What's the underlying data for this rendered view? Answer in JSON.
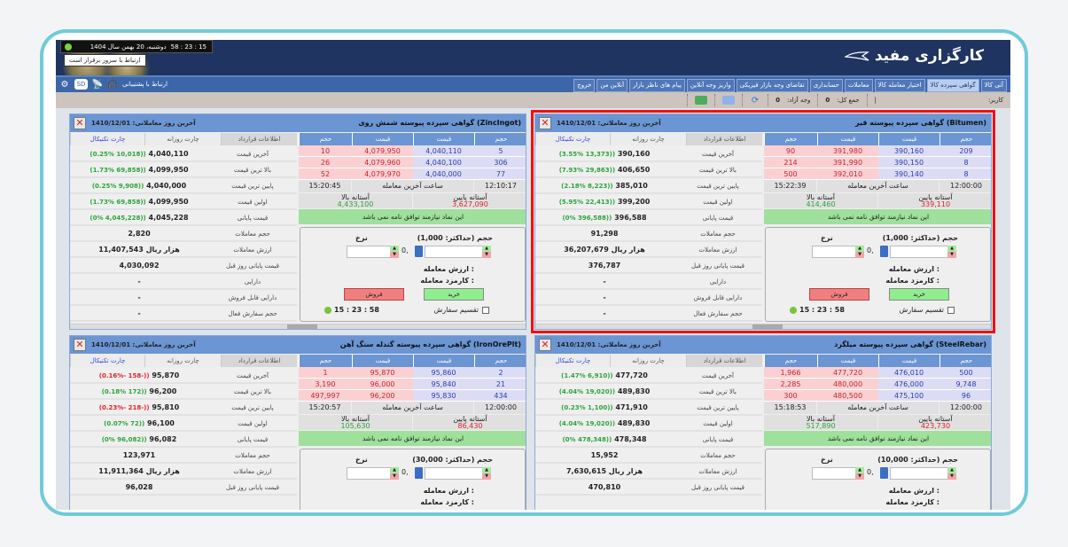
{
  "header": {
    "clock": "15 : 23 : 58",
    "date": "دوشنبه، 20 بهمن سال 1404",
    "server_status": "ارتباط با سرور برقرار است",
    "logo": "کارگزاری مفید"
  },
  "nav": {
    "tabs": [
      "آتی کالا",
      "گواهی سپرده کالا",
      "اختیار معامله کالا",
      "معاملات",
      "حسابداری",
      "تقاضای وجه بازار فیزیکی",
      "واریز وجه آنلاین",
      "پیام های ناظر بازار",
      "آنلاین من",
      "خروج"
    ],
    "active": 1,
    "support": "ارتباط با پشتیبانی",
    "chat_badge": "SD"
  },
  "toolbar": {
    "user_label": "کاربر:",
    "sep": "|",
    "total_label": "جمع کل:",
    "total": "0",
    "free_label": "وجه آزاد:",
    "free": "0"
  },
  "colors": {
    "header": "#1f3461",
    "panel_header": "#6b95d3",
    "buy": "#dcdcf5",
    "sell": "#fbd0d2",
    "up": "#2aa43a",
    "down": "#e0202a",
    "selected_border": "#f01010"
  },
  "common": {
    "info_tabs": [
      "اطلاعات قرارداد",
      "چارت روزانه",
      "چارت تکنیکال"
    ],
    "book_headers": [
      "حجم",
      "قیمت",
      "قیمت",
      "حجم"
    ],
    "last_trade_time_label": "ساعت آخرین معامله",
    "lower_threshold_label": "آستانه پایین",
    "upper_threshold_label": "آستانه بالا",
    "message": "این نماد نیازمند توافق نامه نمی باشد",
    "price_label": "نرخ",
    "decimal": "0,",
    "trade_value_label": "ارزش معامله :",
    "fee_label": "کارمزد معامله :",
    "buy": "خرید",
    "sell": "فروش",
    "split_order": "تقسیم سفارش",
    "clock": "15 : 23 : 58",
    "info_labels": [
      "آخرین قیمت",
      "بالا ترین قیمت",
      "پایین ترین قیمت",
      "اولین قیمت",
      "قیمت پایانی",
      "حجم معاملات",
      "ارزش معاملات",
      "قیمت پایانی روز قبل",
      "دارایی",
      "دارایی قابل فروش",
      "حجم سفارش فعال"
    ]
  },
  "panels": [
    {
      "title": "(Bitumen) گواهی سپرده پیوسته قیر",
      "last_day": "آخرین روز معاملاتی: 1410/12/01",
      "selected": true,
      "bids": [
        [
          "209",
          "390,160"
        ],
        [
          "8",
          "390,150"
        ],
        [
          "8",
          "390,140"
        ]
      ],
      "asks": [
        [
          "391,980",
          "90"
        ],
        [
          "391,990",
          "214"
        ],
        [
          "392,010",
          "500"
        ]
      ],
      "open_time": "12:00:00",
      "last_time": "15:22:39",
      "lower": "339,110",
      "upper": "414,460",
      "volume_label": "حجم (حداکثر: 1,000)",
      "info": [
        [
          "390,160",
          "(3.55% 13,373))",
          "up"
        ],
        [
          "406,650",
          "(7.93% 29,863))",
          "up"
        ],
        [
          "385,010",
          "(2.18% 8,223))",
          "up"
        ],
        [
          "399,200",
          "(5.95% 22,413))",
          "up"
        ],
        [
          "396,588",
          "(0% 396,588))",
          "up"
        ],
        [
          "91,298",
          "",
          ""
        ],
        [
          "36,207,679 هزار ریال",
          "",
          ""
        ],
        [
          "376,787",
          "",
          ""
        ],
        [
          "-",
          "",
          ""
        ],
        [
          "-",
          "",
          ""
        ],
        [
          "-",
          "",
          ""
        ]
      ]
    },
    {
      "title": "(ZincIngot) گواهی سپرده پیوسته شمش روی",
      "last_day": "آخرین روز معاملاتی: 1410/12/01",
      "selected": false,
      "bids": [
        [
          "5",
          "4,040,110"
        ],
        [
          "306",
          "4,040,100"
        ],
        [
          "77",
          "4,040,000"
        ]
      ],
      "asks": [
        [
          "4,079,950",
          "10"
        ],
        [
          "4,079,960",
          "26"
        ],
        [
          "4,079,970",
          "52"
        ]
      ],
      "open_time": "12:10:17",
      "last_time": "15:20:45",
      "lower": "3,627,090",
      "upper": "4,433,100",
      "volume_label": "حجم (حداکثر: 1,000)",
      "info": [
        [
          "4,040,110",
          "(0.25% 10,018))",
          "up"
        ],
        [
          "4,099,950",
          "(1.73% 69,858))",
          "up"
        ],
        [
          "4,040,000",
          "(0.25% 9,908))",
          "up"
        ],
        [
          "4,099,950",
          "(1.73% 69,858))",
          "up"
        ],
        [
          "4,045,228",
          "(0% 4,045,228))",
          "up"
        ],
        [
          "2,820",
          "",
          ""
        ],
        [
          "11,407,543 هزار ریال",
          "",
          ""
        ],
        [
          "4,030,092",
          "",
          ""
        ],
        [
          "-",
          "",
          ""
        ],
        [
          "-",
          "",
          ""
        ],
        [
          "-",
          "",
          ""
        ]
      ]
    },
    {
      "title": "(SteelRebar) گواهی سپرده پیوسته میلگرد",
      "last_day": "آخرین روز معاملاتی: 1410/12/01",
      "selected": false,
      "bids": [
        [
          "500",
          "476,010"
        ],
        [
          "9,748",
          "476,000"
        ],
        [
          "96",
          "475,100"
        ]
      ],
      "asks": [
        [
          "477,720",
          "1,966"
        ],
        [
          "480,000",
          "2,285"
        ],
        [
          "480,500",
          "300"
        ]
      ],
      "open_time": "12:00:00",
      "last_time": "15:18:53",
      "lower": "423,730",
      "upper": "517,890",
      "volume_label": "حجم (حداکثر: 10,000)",
      "info": [
        [
          "477,720",
          "(1.47% 6,910))",
          "up"
        ],
        [
          "489,830",
          "(4.04% 19,020))",
          "up"
        ],
        [
          "471,910",
          "(0.23% 1,100))",
          "up"
        ],
        [
          "489,830",
          "(4.04% 19,020))",
          "up"
        ],
        [
          "478,348",
          "(0% 478,348))",
          "up"
        ],
        [
          "15,952",
          "",
          ""
        ],
        [
          "7,630,615 هزار ریال",
          "",
          ""
        ],
        [
          "470,810",
          "",
          ""
        ]
      ]
    },
    {
      "title": "(IronOrePlt) گواهی سپرده پیوسته گندله سنگ آهن",
      "last_day": "آخرین روز معاملاتی: 1410/12/01",
      "selected": false,
      "bids": [
        [
          "2",
          "95,860"
        ],
        [
          "21",
          "95,840"
        ],
        [
          "434",
          "95,830"
        ]
      ],
      "asks": [
        [
          "95,870",
          "1"
        ],
        [
          "96,000",
          "3,190"
        ],
        [
          "96,200",
          "497,997"
        ]
      ],
      "open_time": "12:00:00",
      "last_time": "15:20:57",
      "lower": "86,430",
      "upper": "105,630",
      "volume_label": "حجم (حداکثر: 30,000)",
      "info": [
        [
          "95,870",
          "(0.16%- 158-))",
          "dn"
        ],
        [
          "96,200",
          "(0.18% 172))",
          "up"
        ],
        [
          "95,810",
          "(0.23%- 218-))",
          "dn"
        ],
        [
          "96,100",
          "(0.07% 72))",
          "up"
        ],
        [
          "96,082",
          "(0% 96,082))",
          "up"
        ],
        [
          "123,971",
          "",
          ""
        ],
        [
          "11,911,364 هزار ریال",
          "",
          ""
        ],
        [
          "96,028",
          "",
          ""
        ]
      ]
    }
  ]
}
